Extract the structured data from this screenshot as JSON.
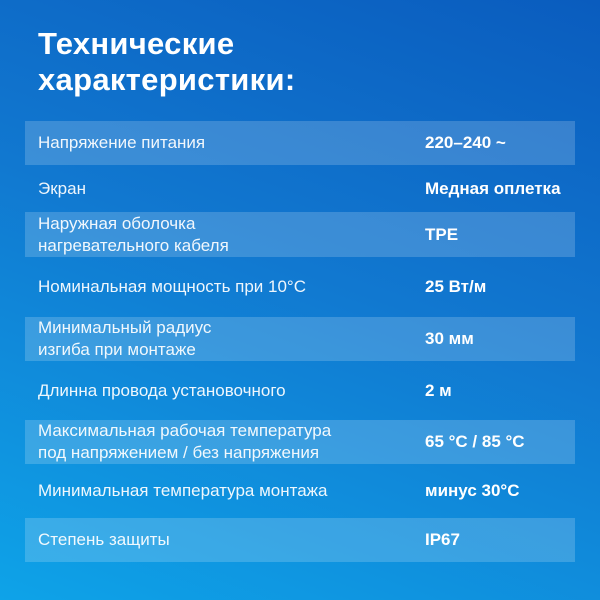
{
  "title": "Технические\nхарактеристики:",
  "colors": {
    "background_top": "#0a5cbe",
    "background_mid": "#1178d0",
    "background_bottom": "#0ea3e8",
    "stripe_overlay": "rgba(255,255,255,0.18)",
    "text": "#ffffff"
  },
  "table": {
    "rows": [
      {
        "label": "Напряжение питания",
        "value": "220–240 ~"
      },
      {
        "label": "Экран",
        "value": "Медная оплетка"
      },
      {
        "label": "Наружная оболочка\nнагревательного кабеля",
        "value": "TPE"
      },
      {
        "label": "Номинальная мощность при 10°С",
        "value": "25 Вт/м"
      },
      {
        "label": "Минимальный радиус\nизгиба при монтаже",
        "value": "30 мм"
      },
      {
        "label": "Длинна провода установочного",
        "value": "2 м"
      },
      {
        "label": "Максимальная рабочая температура\nпод напряжением / без напряжения",
        "value": "65 °С / 85 °С"
      },
      {
        "label": "Минимальная температура монтажа",
        "value": "минус 30°С"
      },
      {
        "label": "Степень защиты",
        "value": "IP67"
      }
    ]
  }
}
